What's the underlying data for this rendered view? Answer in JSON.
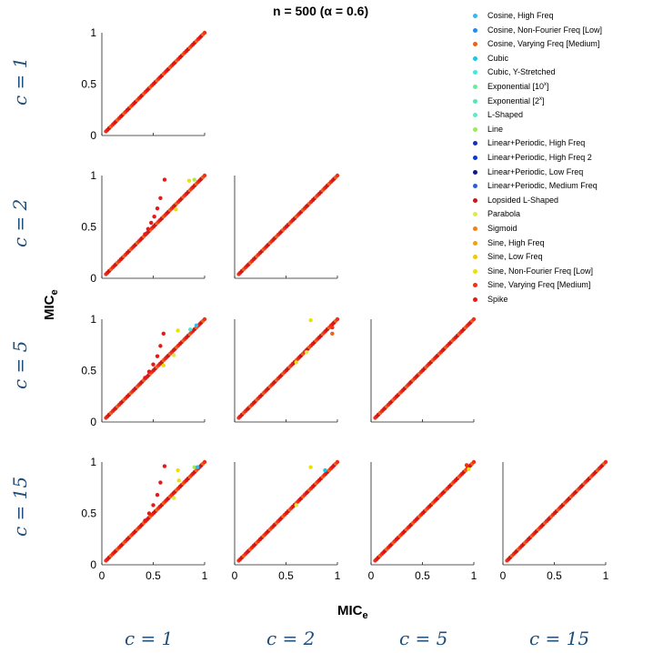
{
  "title": "n = 500  (α = 0.6)",
  "xlabel_main": "MIC",
  "xlabel_sub": "e",
  "ylabel_main": "MIC",
  "ylabel_sub": "e",
  "row_labels": [
    "c = 1",
    "c = 2",
    "c = 5",
    "c = 15"
  ],
  "col_labels": [
    "c = 1",
    "c = 2",
    "c = 5",
    "c = 15"
  ],
  "legend": [
    {
      "label": "Cosine, High Freq",
      "color": "#35b7f0"
    },
    {
      "label": "Cosine, Non-Fourier Freq [Low]",
      "color": "#1e8fe8"
    },
    {
      "label": "Cosine, Varying Freq [Medium]",
      "color": "#f06018"
    },
    {
      "label": "Cubic",
      "color": "#16c8e8"
    },
    {
      "label": "Cubic, Y-Stretched",
      "color": "#40e8e0"
    },
    {
      "label": "Exponential [10",
      "sup": "x",
      "label_end": "]",
      "color": "#70e8a0"
    },
    {
      "label": "Exponential [2",
      "sup": "x",
      "label_end": "]",
      "color": "#50e8b8"
    },
    {
      "label": "L-Shaped",
      "color": "#60e8c8"
    },
    {
      "label": "Line",
      "color": "#a0e860"
    },
    {
      "label": "Linear+Periodic, High Freq",
      "color": "#1830b8"
    },
    {
      "label": "Linear+Periodic, High Freq 2",
      "color": "#0838d8"
    },
    {
      "label": "Linear+Periodic, Low Freq",
      "color": "#101888"
    },
    {
      "label": "Linear+Periodic, Medium Freq",
      "color": "#2860d8"
    },
    {
      "label": "Lopsided L-Shaped",
      "color": "#c81818"
    },
    {
      "label": "Parabola",
      "color": "#e0e850"
    },
    {
      "label": "Sigmoid",
      "color": "#f08018"
    },
    {
      "label": "Sine, High Freq",
      "color": "#f0a010"
    },
    {
      "label": "Sine, Low Freq",
      "color": "#f0c808"
    },
    {
      "label": "Sine, Non-Fourier Freq [Low]",
      "color": "#e8e010"
    },
    {
      "label": "Sine, Varying Freq [Medium]",
      "color": "#f03018"
    },
    {
      "label": "Spike",
      "color": "#e81818"
    }
  ],
  "chart_data": {
    "type": "scatter",
    "layout": "lower-triangular scatter matrix",
    "xlim": [
      0,
      1
    ],
    "ylim": [
      0,
      1
    ],
    "xticks": [
      "0",
      "0.5",
      "1"
    ],
    "yticks": [
      "0",
      "0.5",
      "1"
    ],
    "panels": [
      {
        "row": 0,
        "col": 0,
        "deviations": []
      },
      {
        "row": 1,
        "col": 0,
        "deviations": [
          {
            "x": 0.42,
            "y": 0.43,
            "series": "Spike"
          },
          {
            "x": 0.45,
            "y": 0.48,
            "series": "Spike"
          },
          {
            "x": 0.48,
            "y": 0.54,
            "series": "Spike"
          },
          {
            "x": 0.51,
            "y": 0.6,
            "series": "Spike"
          },
          {
            "x": 0.54,
            "y": 0.68,
            "series": "Spike"
          },
          {
            "x": 0.57,
            "y": 0.78,
            "series": "Spike"
          },
          {
            "x": 0.61,
            "y": 0.96,
            "series": "Spike"
          },
          {
            "x": 0.72,
            "y": 0.67,
            "series": "Sine, Non-Fourier Freq [Low]"
          },
          {
            "x": 0.85,
            "y": 0.95,
            "series": "Sine, Non-Fourier Freq [Low]"
          },
          {
            "x": 0.9,
            "y": 0.96,
            "series": "Line"
          }
        ]
      },
      {
        "row": 1,
        "col": 1,
        "deviations": []
      },
      {
        "row": 2,
        "col": 0,
        "deviations": [
          {
            "x": 0.42,
            "y": 0.43,
            "series": "Spike"
          },
          {
            "x": 0.46,
            "y": 0.49,
            "series": "Spike"
          },
          {
            "x": 0.5,
            "y": 0.56,
            "series": "Spike"
          },
          {
            "x": 0.54,
            "y": 0.64,
            "series": "Spike"
          },
          {
            "x": 0.57,
            "y": 0.74,
            "series": "Spike"
          },
          {
            "x": 0.6,
            "y": 0.86,
            "series": "Spike"
          },
          {
            "x": 0.74,
            "y": 0.89,
            "series": "Sine, Non-Fourier Freq [Low]"
          },
          {
            "x": 0.6,
            "y": 0.55,
            "series": "Sine, Non-Fourier Freq [Low]"
          },
          {
            "x": 0.7,
            "y": 0.65,
            "series": "Parabola"
          },
          {
            "x": 0.86,
            "y": 0.9,
            "series": "Cubic, Y-Stretched"
          },
          {
            "x": 0.92,
            "y": 0.94,
            "series": "Cosine, High Freq"
          }
        ]
      },
      {
        "row": 2,
        "col": 1,
        "deviations": [
          {
            "x": 0.74,
            "y": 0.99,
            "series": "Sine, Non-Fourier Freq [Low]"
          },
          {
            "x": 0.6,
            "y": 0.58,
            "series": "Sine, Non-Fourier Freq [Low]"
          },
          {
            "x": 0.7,
            "y": 0.68,
            "series": "Parabola"
          },
          {
            "x": 0.95,
            "y": 0.86,
            "series": "Cosine, Varying Freq [Medium]"
          },
          {
            "x": 0.95,
            "y": 0.92,
            "series": "Sine, Varying Freq [Medium]"
          }
        ]
      },
      {
        "row": 2,
        "col": 2,
        "deviations": []
      },
      {
        "row": 3,
        "col": 0,
        "deviations": [
          {
            "x": 0.42,
            "y": 0.43,
            "series": "Spike"
          },
          {
            "x": 0.46,
            "y": 0.5,
            "series": "Spike"
          },
          {
            "x": 0.5,
            "y": 0.58,
            "series": "Spike"
          },
          {
            "x": 0.54,
            "y": 0.68,
            "series": "Spike"
          },
          {
            "x": 0.57,
            "y": 0.8,
            "series": "Spike"
          },
          {
            "x": 0.61,
            "y": 0.96,
            "series": "Spike"
          },
          {
            "x": 0.74,
            "y": 0.92,
            "series": "Sine, Non-Fourier Freq [Low]"
          },
          {
            "x": 0.75,
            "y": 0.82,
            "series": "Sine, Non-Fourier Freq [Low]"
          },
          {
            "x": 0.7,
            "y": 0.65,
            "series": "Parabola"
          },
          {
            "x": 0.9,
            "y": 0.95,
            "series": "Line"
          },
          {
            "x": 0.93,
            "y": 0.95,
            "series": "Cosine, High Freq"
          }
        ]
      },
      {
        "row": 3,
        "col": 1,
        "deviations": [
          {
            "x": 0.74,
            "y": 0.95,
            "series": "Sine, Non-Fourier Freq [Low]"
          },
          {
            "x": 0.6,
            "y": 0.58,
            "series": "Parabola"
          },
          {
            "x": 0.88,
            "y": 0.92,
            "series": "Cubic"
          }
        ]
      },
      {
        "row": 3,
        "col": 2,
        "deviations": [
          {
            "x": 0.93,
            "y": 0.97,
            "series": "Sine, Varying Freq [Medium]"
          },
          {
            "x": 0.95,
            "y": 0.93,
            "series": "Sine, Non-Fourier Freq [Low]"
          }
        ]
      },
      {
        "row": 3,
        "col": 3,
        "deviations": []
      }
    ]
  }
}
